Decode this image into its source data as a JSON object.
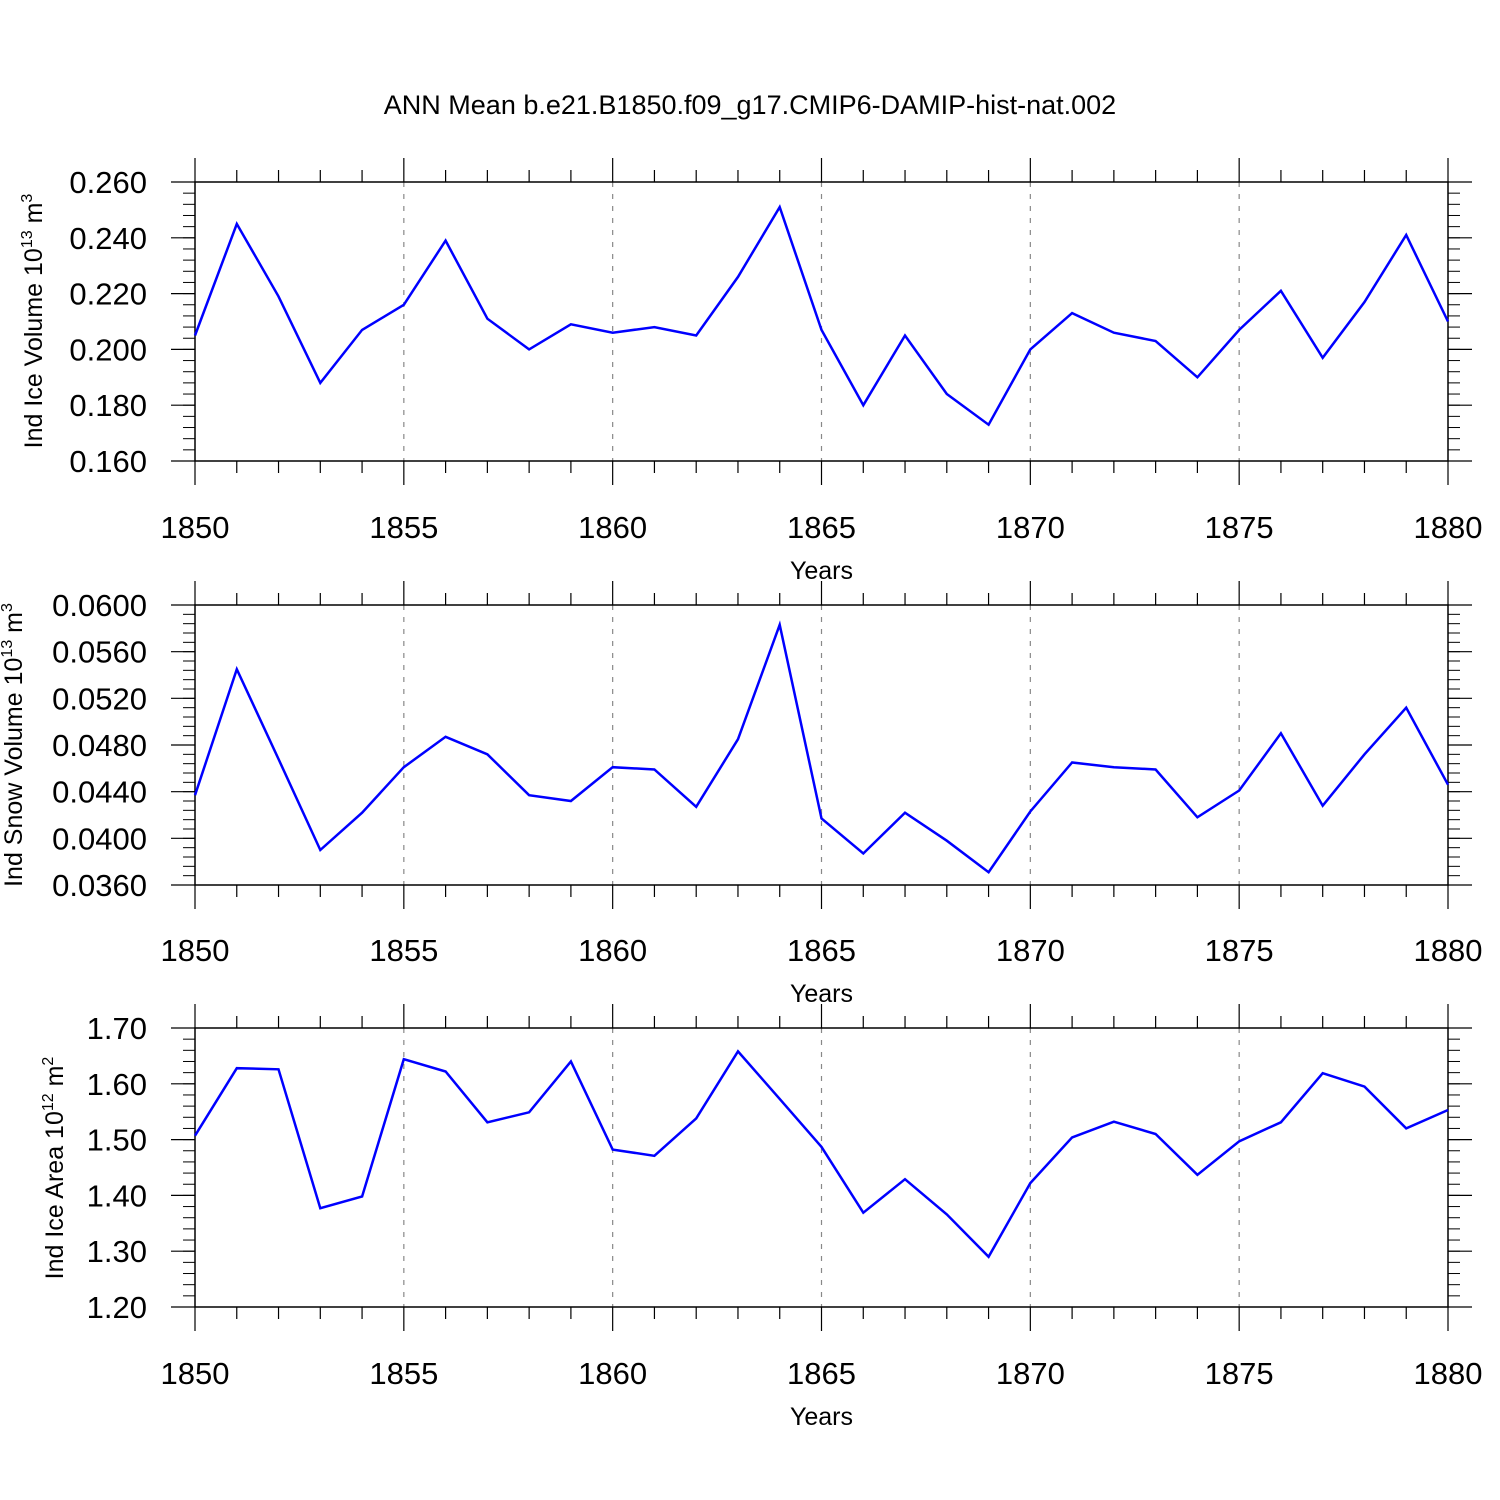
{
  "title": "ANN Mean b.e21.B1850.f09_g17.CMIP6-DAMIP-hist-nat.002",
  "chart_data": [
    {
      "type": "line",
      "title": "",
      "xlabel": "Years",
      "ylabel": "Ind Ice Volume 10",
      "ylabel_sup": "13",
      "ylabel_unit": "m",
      "ylabel_unit_sup": "3",
      "xlim": [
        1850,
        1880
      ],
      "ylim": [
        0.16,
        0.26
      ],
      "xticks": [
        1850,
        1855,
        1860,
        1865,
        1870,
        1875,
        1880
      ],
      "xtick_labels": [
        "1850",
        "1855",
        "1860",
        "1865",
        "1870",
        "1875",
        "1880"
      ],
      "yticks": [
        0.16,
        0.18,
        0.2,
        0.22,
        0.24,
        0.26
      ],
      "ytick_labels": [
        "0.160",
        "0.180",
        "0.200",
        "0.220",
        "0.240",
        "0.260"
      ],
      "y_minor_step": 0.004,
      "grid": "vertical dashed at major x ticks",
      "line_color": "#0000ff",
      "x": [
        1850,
        1851,
        1852,
        1853,
        1854,
        1855,
        1856,
        1857,
        1858,
        1859,
        1860,
        1861,
        1862,
        1863,
        1864,
        1865,
        1866,
        1867,
        1868,
        1869,
        1870,
        1871,
        1872,
        1873,
        1874,
        1875,
        1876,
        1877,
        1878,
        1879,
        1880
      ],
      "y": [
        0.205,
        0.245,
        0.219,
        0.188,
        0.207,
        0.216,
        0.239,
        0.211,
        0.2,
        0.209,
        0.206,
        0.208,
        0.205,
        0.226,
        0.251,
        0.207,
        0.18,
        0.205,
        0.184,
        0.173,
        0.2,
        0.213,
        0.206,
        0.203,
        0.19,
        0.207,
        0.221,
        0.197,
        0.217,
        0.241,
        0.21
      ]
    },
    {
      "type": "line",
      "title": "",
      "xlabel": "Years",
      "ylabel": "Ind Snow Volume 10",
      "ylabel_sup": "13",
      "ylabel_unit": "m",
      "ylabel_unit_sup": "3",
      "xlim": [
        1850,
        1880
      ],
      "ylim": [
        0.036,
        0.06
      ],
      "xticks": [
        1850,
        1855,
        1860,
        1865,
        1870,
        1875,
        1880
      ],
      "xtick_labels": [
        "1850",
        "1855",
        "1860",
        "1865",
        "1870",
        "1875",
        "1880"
      ],
      "yticks": [
        0.036,
        0.04,
        0.044,
        0.048,
        0.052,
        0.056,
        0.06
      ],
      "ytick_labels": [
        "0.0360",
        "0.0400",
        "0.0440",
        "0.0480",
        "0.0520",
        "0.0560",
        "0.0600"
      ],
      "y_minor_step": 0.0008,
      "grid": "vertical dashed at major x ticks",
      "line_color": "#0000ff",
      "x": [
        1850,
        1851,
        1852,
        1853,
        1854,
        1855,
        1856,
        1857,
        1858,
        1859,
        1860,
        1861,
        1862,
        1863,
        1864,
        1865,
        1866,
        1867,
        1868,
        1869,
        1870,
        1871,
        1872,
        1873,
        1874,
        1875,
        1876,
        1877,
        1878,
        1879,
        1880
      ],
      "y": [
        0.0437,
        0.0545,
        0.0468,
        0.039,
        0.0422,
        0.0461,
        0.0487,
        0.0472,
        0.0437,
        0.0432,
        0.0461,
        0.0459,
        0.0427,
        0.0485,
        0.0583,
        0.0417,
        0.0387,
        0.0422,
        0.0398,
        0.0371,
        0.0423,
        0.0465,
        0.0461,
        0.0459,
        0.0418,
        0.0441,
        0.049,
        0.0428,
        0.0472,
        0.0512,
        0.0446
      ]
    },
    {
      "type": "line",
      "title": "",
      "xlabel": "Years",
      "ylabel": "Ind Ice Area 10",
      "ylabel_sup": "12",
      "ylabel_unit": "m",
      "ylabel_unit_sup": "2",
      "xlim": [
        1850,
        1880
      ],
      "ylim": [
        1.2,
        1.7
      ],
      "xticks": [
        1850,
        1855,
        1860,
        1865,
        1870,
        1875,
        1880
      ],
      "xtick_labels": [
        "1850",
        "1855",
        "1860",
        "1865",
        "1870",
        "1875",
        "1880"
      ],
      "yticks": [
        1.2,
        1.3,
        1.4,
        1.5,
        1.6,
        1.7
      ],
      "ytick_labels": [
        "1.20",
        "1.30",
        "1.40",
        "1.50",
        "1.60",
        "1.70"
      ],
      "y_minor_step": 0.02,
      "grid": "vertical dashed at major x ticks",
      "line_color": "#0000ff",
      "x": [
        1850,
        1851,
        1852,
        1853,
        1854,
        1855,
        1856,
        1857,
        1858,
        1859,
        1860,
        1861,
        1862,
        1863,
        1864,
        1865,
        1866,
        1867,
        1868,
        1869,
        1870,
        1871,
        1872,
        1873,
        1874,
        1875,
        1876,
        1877,
        1878,
        1879,
        1880
      ],
      "y": [
        1.507,
        1.628,
        1.626,
        1.377,
        1.398,
        1.644,
        1.622,
        1.531,
        1.549,
        1.64,
        1.482,
        1.471,
        1.538,
        1.658,
        1.573,
        1.487,
        1.369,
        1.429,
        1.366,
        1.29,
        1.422,
        1.504,
        1.532,
        1.51,
        1.437,
        1.497,
        1.531,
        1.619,
        1.595,
        1.52,
        1.553
      ]
    }
  ]
}
